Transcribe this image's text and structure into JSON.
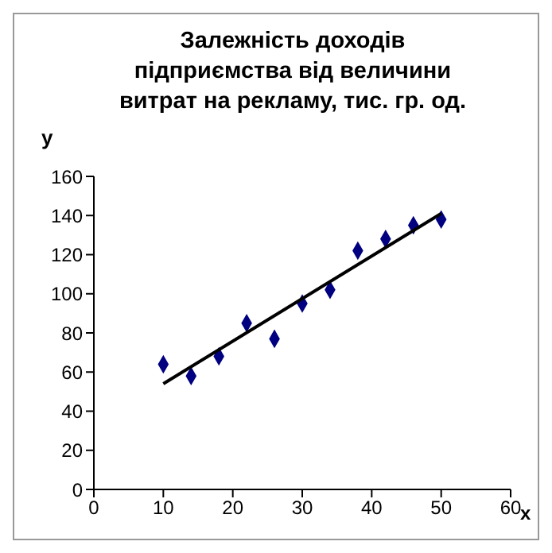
{
  "chart_data": {
    "type": "scatter",
    "title": "Залежність доходів підприємства від величини витрат на рекламу, тис. гр. од.",
    "xlabel": "x",
    "ylabel": "y",
    "xlim": [
      0,
      60
    ],
    "xticks": [
      0,
      10,
      20,
      30,
      40,
      50,
      60
    ],
    "ylim": [
      0,
      160
    ],
    "yticks": [
      0,
      20,
      40,
      60,
      80,
      100,
      120,
      140,
      160
    ],
    "grid": false,
    "series": [
      {
        "color": "#000080",
        "marker": "diamond",
        "x": [
          10,
          14,
          18,
          22,
          26,
          30,
          34,
          38,
          42,
          46,
          50
        ],
        "values": [
          64,
          58,
          68,
          85,
          77,
          95,
          102,
          122,
          128,
          135,
          138
        ]
      },
      {
        "type": "line",
        "color": "#000000",
        "marker": "none",
        "line_style": "solid",
        "x": [
          10,
          50
        ],
        "values": [
          54,
          141
        ]
      }
    ]
  }
}
